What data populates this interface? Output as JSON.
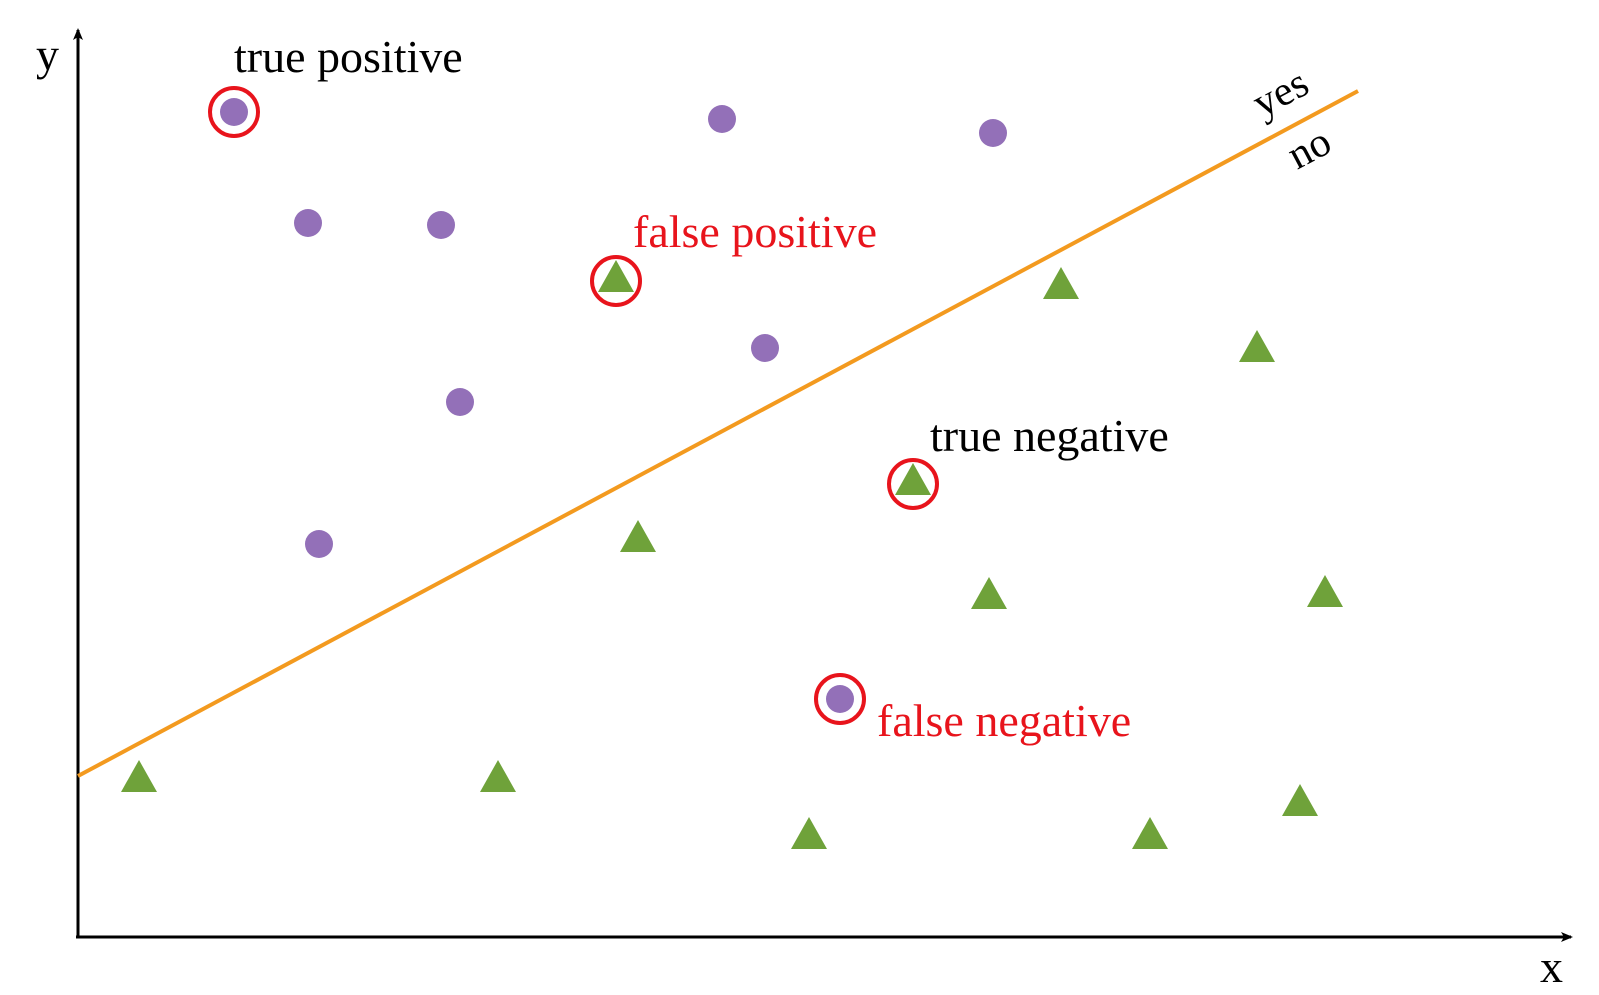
{
  "colors": {
    "positive_class": "#9370B8",
    "negative_class": "#6FA23A",
    "decision_boundary": "#F39A1F",
    "highlight_ring": "#E8141C",
    "axis": "#000000",
    "correct_label": "#000000",
    "error_label": "#E8141C"
  },
  "axes": {
    "x_label": "x",
    "y_label": "y"
  },
  "boundary": {
    "yes_label": "yes",
    "no_label": "no"
  },
  "annotations": {
    "true_positive": "true positive",
    "false_positive": "false positive",
    "true_negative": "true negative",
    "false_negative": "false negative"
  },
  "icons": {
    "positive_marker": "circle",
    "negative_marker": "triangle",
    "highlight_marker": "ring"
  }
}
